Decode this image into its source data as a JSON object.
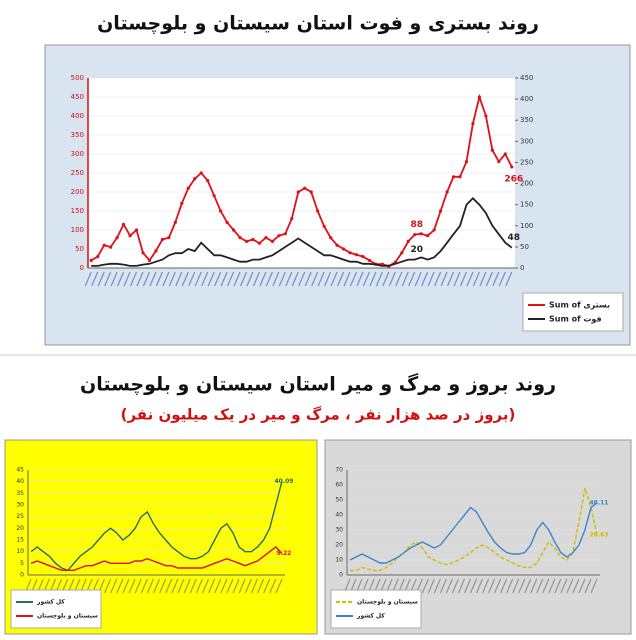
{
  "chart_data": [
    {
      "type": "line",
      "title": "روند بستری و فوت استان سیستان و بلوچستان",
      "categories": [
        null,
        null,
        null,
        null,
        null,
        null,
        null,
        null,
        null,
        null,
        null,
        null,
        null,
        null,
        null,
        null,
        null,
        null,
        null,
        null,
        null,
        null,
        null,
        null,
        null,
        null,
        null,
        null,
        null,
        null,
        null,
        null,
        null,
        null,
        null,
        null,
        null,
        null,
        null,
        null,
        null,
        null,
        null,
        null,
        null,
        null,
        null,
        null,
        null,
        null,
        null,
        null,
        null,
        null,
        null,
        null,
        null,
        null,
        null,
        null,
        null,
        null,
        null,
        null,
        null,
        null
      ],
      "ylim": [
        0,
        500
      ],
      "yticks": [
        0,
        50,
        100,
        150,
        200,
        250,
        300,
        350,
        400,
        450,
        500
      ],
      "y2lim": [
        0,
        450
      ],
      "y2ticks": [
        0,
        50,
        100,
        150,
        200,
        250,
        300,
        350,
        400,
        450
      ],
      "legend": "bottom-right",
      "background": "#d9e4f1",
      "plot_background": "#ffffff",
      "series": [
        {
          "name": "Sum of بستری",
          "color": "#e0101a",
          "markers": true,
          "values": [
            20,
            30,
            60,
            55,
            80,
            115,
            85,
            100,
            40,
            20,
            45,
            75,
            80,
            120,
            170,
            210,
            235,
            250,
            230,
            190,
            150,
            120,
            100,
            80,
            70,
            75,
            65,
            80,
            70,
            85,
            90,
            130,
            200,
            210,
            200,
            150,
            110,
            80,
            60,
            50,
            40,
            35,
            30,
            20,
            10,
            10,
            5,
            15,
            40,
            70,
            88,
            90,
            85,
            100,
            150,
            200,
            240,
            240,
            280,
            380,
            450,
            400,
            310,
            280,
            300,
            266
          ],
          "value_labels": [
            null,
            null,
            null,
            null,
            null,
            null,
            null,
            null,
            null,
            null,
            null,
            null,
            null,
            null,
            null,
            null,
            null,
            null,
            null,
            null,
            null,
            null,
            null,
            null,
            null,
            null,
            null,
            null,
            null,
            null,
            null,
            null,
            null,
            null,
            null,
            null,
            null,
            null,
            null,
            null,
            null,
            null,
            null,
            null,
            null,
            null,
            null,
            null,
            null,
            null,
            "88",
            null,
            null,
            null,
            null,
            null,
            null,
            null,
            null,
            null,
            null,
            null,
            null,
            null,
            null,
            "266"
          ]
        },
        {
          "name": "Sum of فوت",
          "color": "#222222",
          "axis": "y2",
          "markers": false,
          "values": [
            5,
            5,
            8,
            10,
            10,
            8,
            5,
            5,
            8,
            10,
            15,
            20,
            30,
            35,
            35,
            45,
            40,
            60,
            45,
            30,
            30,
            25,
            20,
            15,
            15,
            20,
            20,
            25,
            30,
            40,
            50,
            60,
            70,
            60,
            50,
            40,
            30,
            30,
            25,
            20,
            15,
            15,
            10,
            10,
            8,
            5,
            5,
            10,
            15,
            20,
            20,
            25,
            20,
            25,
            40,
            60,
            80,
            100,
            150,
            165,
            150,
            130,
            100,
            80,
            60,
            48
          ],
          "value_labels": [
            null,
            null,
            null,
            null,
            null,
            null,
            null,
            null,
            null,
            null,
            null,
            null,
            null,
            null,
            null,
            null,
            null,
            null,
            null,
            null,
            null,
            null,
            null,
            null,
            null,
            null,
            null,
            null,
            null,
            null,
            null,
            null,
            null,
            null,
            null,
            null,
            null,
            null,
            null,
            null,
            null,
            null,
            null,
            null,
            null,
            null,
            null,
            null,
            null,
            null,
            "20",
            null,
            null,
            null,
            null,
            null,
            null,
            null,
            null,
            null,
            null,
            null,
            null,
            null,
            null,
            "48"
          ]
        }
      ]
    },
    {
      "type": "line",
      "title": "روند بروز و مرگ و میر استان سیستان و بلوچستان",
      "subtitle": "(بروز در صد هزار نفر ، مرگ و میر در یک میلیون نفر)",
      "categories": [
        null,
        null,
        null,
        null,
        null,
        null,
        null,
        null,
        null,
        null,
        null,
        null,
        null,
        null,
        null,
        null,
        null,
        null,
        null,
        null,
        null,
        null,
        null,
        null,
        null,
        null,
        null,
        null,
        null,
        null,
        null,
        null,
        null,
        null,
        null,
        null,
        null,
        null,
        null,
        null,
        null,
        null
      ],
      "ylim": [
        0,
        45
      ],
      "yticks": [
        0,
        5,
        10,
        15,
        20,
        25,
        30,
        35,
        40,
        45
      ],
      "legend": "bottom-left",
      "background": "#ffff00",
      "plot_background": "#ffff00",
      "series": [
        {
          "name": "کل کشور",
          "color": "#2e6b5e",
          "markers": false,
          "values": [
            10,
            12,
            10,
            8,
            5,
            3,
            2,
            5,
            8,
            10,
            12,
            15,
            18,
            20,
            18,
            15,
            17,
            20,
            25,
            27,
            22,
            18,
            15,
            12,
            10,
            8,
            7,
            7,
            8,
            10,
            15,
            20,
            22,
            18,
            12,
            10,
            10,
            12,
            15,
            20,
            30,
            40.09
          ],
          "value_labels": [
            null,
            null,
            null,
            null,
            null,
            null,
            null,
            null,
            null,
            null,
            null,
            null,
            null,
            null,
            null,
            null,
            null,
            null,
            null,
            null,
            null,
            null,
            null,
            null,
            null,
            null,
            null,
            null,
            null,
            null,
            null,
            null,
            null,
            null,
            null,
            null,
            null,
            null,
            null,
            null,
            null,
            "40.09"
          ]
        },
        {
          "name": "سیستان و بلوچستان",
          "color": "#e0101a",
          "markers": false,
          "values": [
            5,
            6,
            5,
            4,
            3,
            2,
            2,
            2,
            3,
            4,
            4,
            5,
            6,
            5,
            5,
            5,
            5,
            6,
            6,
            7,
            6,
            5,
            4,
            4,
            3,
            3,
            3,
            3,
            3,
            4,
            5,
            6,
            7,
            6,
            5,
            4,
            5,
            6,
            8,
            10,
            12,
            9.22
          ],
          "value_labels": [
            null,
            null,
            null,
            null,
            null,
            null,
            null,
            null,
            null,
            null,
            null,
            null,
            null,
            null,
            null,
            null,
            null,
            null,
            null,
            null,
            null,
            null,
            null,
            null,
            null,
            null,
            null,
            null,
            null,
            null,
            null,
            null,
            null,
            null,
            null,
            null,
            null,
            null,
            null,
            null,
            null,
            "9.22"
          ]
        }
      ]
    },
    {
      "type": "line",
      "categories": [
        null,
        null,
        null,
        null,
        null,
        null,
        null,
        null,
        null,
        null,
        null,
        null,
        null,
        null,
        null,
        null,
        null,
        null,
        null,
        null,
        null,
        null,
        null,
        null,
        null,
        null,
        null,
        null,
        null,
        null,
        null,
        null,
        null,
        null,
        null,
        null,
        null,
        null,
        null,
        null,
        null,
        null
      ],
      "ylim": [
        0,
        70
      ],
      "yticks": [
        0,
        10,
        20,
        30,
        40,
        50,
        60,
        70
      ],
      "legend": "bottom-left",
      "background": "#d9d9d9",
      "plot_background": "#d9d9d9",
      "series": [
        {
          "name": "سیستان و بلوچستان",
          "color": "#c8c000",
          "line_style": "dashed",
          "markers": false,
          "values": [
            3,
            3,
            5,
            4,
            3,
            3,
            5,
            8,
            12,
            15,
            20,
            22,
            18,
            12,
            10,
            8,
            7,
            8,
            10,
            12,
            15,
            18,
            20,
            18,
            15,
            12,
            10,
            8,
            6,
            5,
            5,
            8,
            15,
            22,
            18,
            12,
            10,
            15,
            35,
            58,
            45,
            26.63
          ],
          "value_labels": [
            null,
            null,
            null,
            null,
            null,
            null,
            null,
            null,
            null,
            null,
            null,
            null,
            null,
            null,
            null,
            null,
            null,
            null,
            null,
            null,
            null,
            null,
            null,
            null,
            null,
            null,
            null,
            null,
            null,
            null,
            null,
            null,
            null,
            null,
            null,
            null,
            null,
            null,
            null,
            null,
            null,
            "26.63"
          ]
        },
        {
          "name": "کل کشور",
          "color": "#3a86c8",
          "markers": false,
          "values": [
            10,
            12,
            14,
            12,
            10,
            8,
            8,
            10,
            12,
            15,
            18,
            20,
            22,
            20,
            18,
            20,
            25,
            30,
            35,
            40,
            45,
            42,
            35,
            28,
            22,
            18,
            15,
            14,
            14,
            15,
            20,
            30,
            35,
            30,
            22,
            15,
            12,
            15,
            20,
            30,
            45,
            48.11
          ],
          "value_labels": [
            null,
            null,
            null,
            null,
            null,
            null,
            null,
            null,
            null,
            null,
            null,
            null,
            null,
            null,
            null,
            null,
            null,
            null,
            null,
            null,
            null,
            null,
            null,
            null,
            null,
            null,
            null,
            null,
            null,
            null,
            null,
            null,
            null,
            null,
            null,
            null,
            null,
            null,
            null,
            null,
            null,
            "48.11"
          ]
        }
      ]
    }
  ]
}
